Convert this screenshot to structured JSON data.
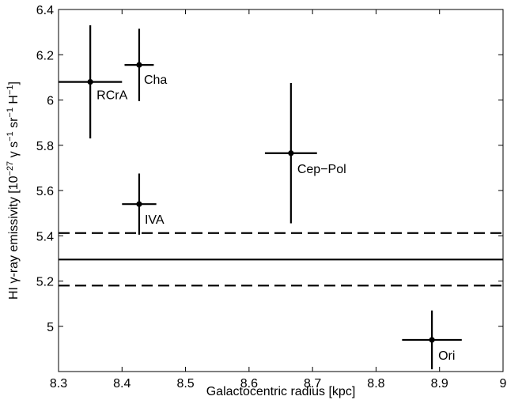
{
  "chart_data": {
    "type": "scatter",
    "xlabel": "Galactocentric radius  [kpc]",
    "ylabel": {
      "pre": "HI γ-ray emissivity  [10",
      "exp1": "−27",
      "mid1": " γ s",
      "exp2": "−1",
      "mid2": " sr",
      "exp3": "−1",
      "mid3": " H",
      "exp4": "−1",
      "post": "]"
    },
    "xlim": [
      8.3,
      9.0
    ],
    "ylim": [
      4.8,
      6.4
    ],
    "xticks": [
      "8.3",
      "8.4",
      "8.5",
      "8.6",
      "8.7",
      "8.8",
      "8.9",
      "9"
    ],
    "xtick_values": [
      8.3,
      8.4,
      8.5,
      8.6,
      8.7,
      8.8,
      8.9,
      9.0
    ],
    "yticks": [
      "5",
      "5.2",
      "5.4",
      "5.6",
      "5.8",
      "6",
      "6.2",
      "6.4"
    ],
    "ytick_values": [
      5.0,
      5.2,
      5.4,
      5.6,
      5.8,
      6.0,
      6.2,
      6.4
    ],
    "grid": false,
    "points": [
      {
        "label": "RCrA",
        "x": 8.35,
        "y": 6.08,
        "xerr": 0.05,
        "ylow": 5.83,
        "yhigh": 6.33
      },
      {
        "label": "Cha",
        "x": 8.427,
        "y": 6.155,
        "xerr": 0.023,
        "ylow": 5.995,
        "yhigh": 6.315
      },
      {
        "label": "Cep−Pol",
        "x": 8.666,
        "y": 5.765,
        "xerr": 0.041,
        "ylow": 5.455,
        "yhigh": 6.075
      },
      {
        "label": "IVA",
        "x": 8.427,
        "y": 5.54,
        "xerr": 0.027,
        "ylow": 5.405,
        "yhigh": 5.675
      },
      {
        "label": "Ori",
        "x": 8.888,
        "y": 4.94,
        "xerr": 0.047,
        "ylow": 4.81,
        "yhigh": 5.07
      }
    ],
    "hlines": [
      {
        "y": 5.295,
        "style": "solid"
      },
      {
        "y": 5.412,
        "style": "dashed"
      },
      {
        "y": 5.18,
        "style": "dashed"
      }
    ]
  }
}
